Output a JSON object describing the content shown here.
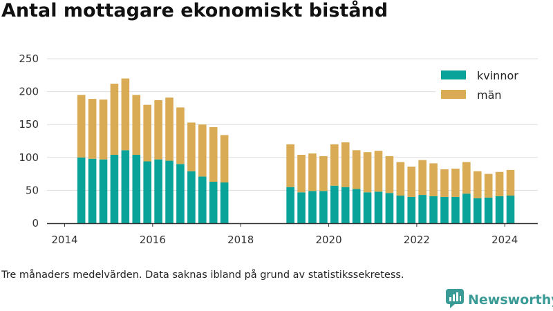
{
  "title": "Antal mottagare ekonomiskt bistånd",
  "footnote": "Tre månaders medelvärden. Data saknas ibland på grund av statistikssekretess.",
  "brand": {
    "name": "Newsworthy",
    "icon": "newsworthy-logo-icon",
    "color": "#3a9a95"
  },
  "colors": {
    "kvinnor": "#0aa39a",
    "man": "#d9ab55",
    "grid": "#dddddd",
    "axis": "#333333"
  },
  "chart_data": {
    "type": "bar",
    "stacked": true,
    "title": "Antal mottagare ekonomiskt bistånd",
    "xlabel": "",
    "ylabel": "",
    "ylim": [
      0,
      250
    ],
    "yticks": [
      0,
      50,
      100,
      150,
      200,
      250
    ],
    "xlim": [
      2013.6,
      2024.75
    ],
    "xticks": [
      2014,
      2016,
      2018,
      2020,
      2022,
      2024
    ],
    "xtick_labels": [
      "2014",
      "2016",
      "2018",
      "2020",
      "2022",
      "2024"
    ],
    "grid": "horizontal",
    "legend_position": "top-right",
    "x": [
      2014.38,
      2014.63,
      2014.88,
      2015.13,
      2015.38,
      2015.63,
      2015.88,
      2016.13,
      2016.38,
      2016.63,
      2016.88,
      2017.13,
      2017.38,
      2017.63,
      2019.13,
      2019.38,
      2019.63,
      2019.88,
      2020.13,
      2020.38,
      2020.63,
      2020.88,
      2021.13,
      2021.38,
      2021.63,
      2021.88,
      2022.13,
      2022.38,
      2022.63,
      2022.88,
      2023.13,
      2023.38,
      2023.63,
      2023.88,
      2024.13
    ],
    "series": [
      {
        "name": "kvinnor",
        "color": "#0aa39a",
        "values": [
          100,
          98,
          97,
          104,
          111,
          104,
          94,
          97,
          95,
          90,
          79,
          71,
          63,
          62,
          55,
          47,
          49,
          49,
          57,
          55,
          52,
          47,
          48,
          46,
          42,
          40,
          43,
          41,
          40,
          40,
          45,
          38,
          39,
          41,
          42
        ]
      },
      {
        "name": "män",
        "color": "#d9ab55",
        "values": [
          95,
          91,
          91,
          108,
          109,
          91,
          86,
          90,
          96,
          86,
          74,
          79,
          83,
          72,
          65,
          57,
          57,
          53,
          63,
          68,
          59,
          61,
          62,
          56,
          51,
          46,
          53,
          50,
          42,
          43,
          48,
          41,
          36,
          37,
          39
        ]
      }
    ]
  }
}
